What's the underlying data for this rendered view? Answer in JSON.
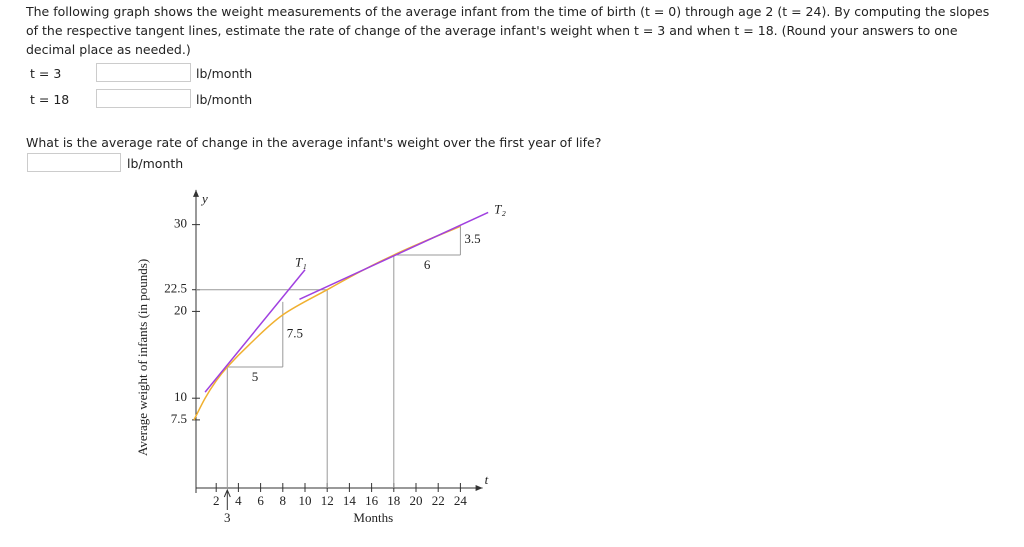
{
  "question": {
    "text": "The following graph shows the weight measurements of the average infant from the time of birth (t = 0) through age 2 (t = 24). By computing the slopes of the respective tangent lines, estimate the rate of change of the average infant's weight when t = 3 and when t = 18. (Round your answers to one decimal place as needed.)",
    "rows": [
      {
        "label": "t = 3",
        "unit": "lb/month"
      },
      {
        "label": "t = 18",
        "unit": "lb/month"
      }
    ]
  },
  "question2": {
    "text": "What is the average rate of change in the average infant's weight over the first year of life?",
    "unit": "lb/month"
  },
  "chart_data": {
    "type": "line",
    "y_label": "y",
    "x_label": "t",
    "y_title": "Average weight of infants (in pounds)",
    "x_title": "Months",
    "xlim": [
      0,
      26
    ],
    "ylim": [
      0,
      34
    ],
    "xticks": [
      2,
      4,
      6,
      8,
      10,
      12,
      14,
      16,
      18,
      20,
      22,
      24
    ],
    "marked_tick": 3,
    "yticks": [
      7.5,
      10,
      20,
      22.5,
      30
    ],
    "curve": {
      "color": "#f0b030",
      "x": [
        0,
        1,
        2,
        3,
        5,
        8,
        12,
        15,
        18,
        21,
        24
      ],
      "y": [
        7.5,
        10,
        12,
        13.6,
        16.2,
        19.6,
        22.5,
        24.6,
        26.5,
        28.2,
        29.8
      ]
    },
    "tangents": [
      {
        "name": "T₁",
        "color": "#a040e0",
        "x": [
          1,
          10
        ],
        "y": [
          10.7,
          24.8
        ]
      },
      {
        "name": "T₂",
        "color": "#a040e0",
        "x": [
          9.5,
          26.5
        ],
        "y": [
          21.4,
          31.4
        ]
      }
    ],
    "triangles": [
      {
        "x": 3,
        "y": 13.6,
        "run": 5,
        "rise": 7.5
      },
      {
        "x": 18,
        "y": 26.5,
        "run": 6,
        "rise": 3.5
      }
    ]
  }
}
